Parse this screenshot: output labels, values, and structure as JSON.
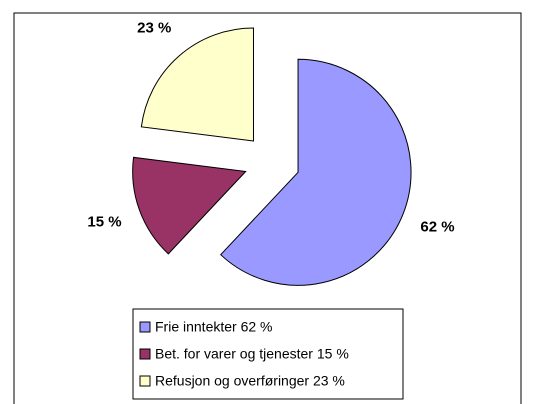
{
  "chart_data": {
    "type": "pie",
    "categories": [
      "Frie inntekter 62 %",
      "Bet. for varer og tjenester 15 %",
      "Refusjon og overføringer 23 %"
    ],
    "values": [
      62,
      15,
      23
    ],
    "value_labels": [
      "62 %",
      "15 %",
      "23 %"
    ],
    "colors": [
      "#9999ff",
      "#993366",
      "#ffffcc"
    ],
    "legend": "bottom"
  }
}
